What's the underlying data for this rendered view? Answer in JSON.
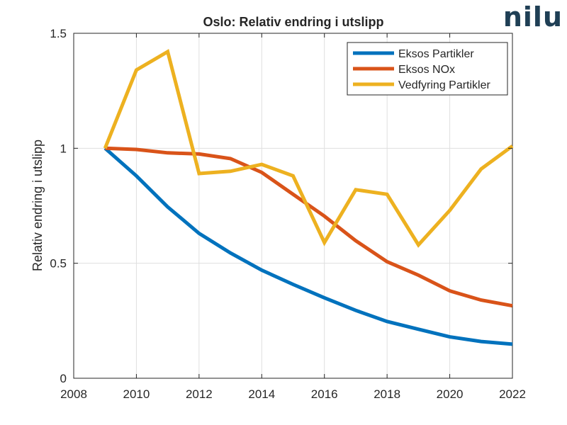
{
  "logo": {
    "text": "nilu"
  },
  "chart_data": {
    "type": "line",
    "title": "Oslo: Relativ endring i utslipp",
    "xlabel": "",
    "ylabel": "Relativ endring i utslipp",
    "xlim": [
      2008,
      2022
    ],
    "ylim": [
      0,
      1.5
    ],
    "xticks": [
      "2008",
      "2010",
      "2012",
      "2014",
      "2016",
      "2018",
      "2020",
      "2022"
    ],
    "yticks": [
      "0",
      "0.5",
      "1",
      "1.5"
    ],
    "grid": true,
    "legend_position": "top-right",
    "x": [
      2009,
      2010,
      2011,
      2012,
      2013,
      2014,
      2015,
      2016,
      2017,
      2018,
      2019,
      2020,
      2021,
      2022
    ],
    "series": [
      {
        "name": "Eksos Partikler",
        "color": "#0072BD",
        "values": [
          1.0,
          0.88,
          0.745,
          0.63,
          0.545,
          0.47,
          0.408,
          0.35,
          0.295,
          0.247,
          0.213,
          0.18,
          0.16,
          0.148
        ]
      },
      {
        "name": "Eksos NOx",
        "color": "#D95319",
        "values": [
          1.0,
          0.995,
          0.98,
          0.975,
          0.955,
          0.895,
          0.8,
          0.705,
          0.598,
          0.507,
          0.448,
          0.38,
          0.34,
          0.315
        ]
      },
      {
        "name": "Vedfyring Partikler",
        "color": "#EDB120",
        "values": [
          1.0,
          1.34,
          1.42,
          0.89,
          0.9,
          0.93,
          0.88,
          0.59,
          0.82,
          0.8,
          0.58,
          0.73,
          0.91,
          1.01
        ]
      }
    ]
  }
}
